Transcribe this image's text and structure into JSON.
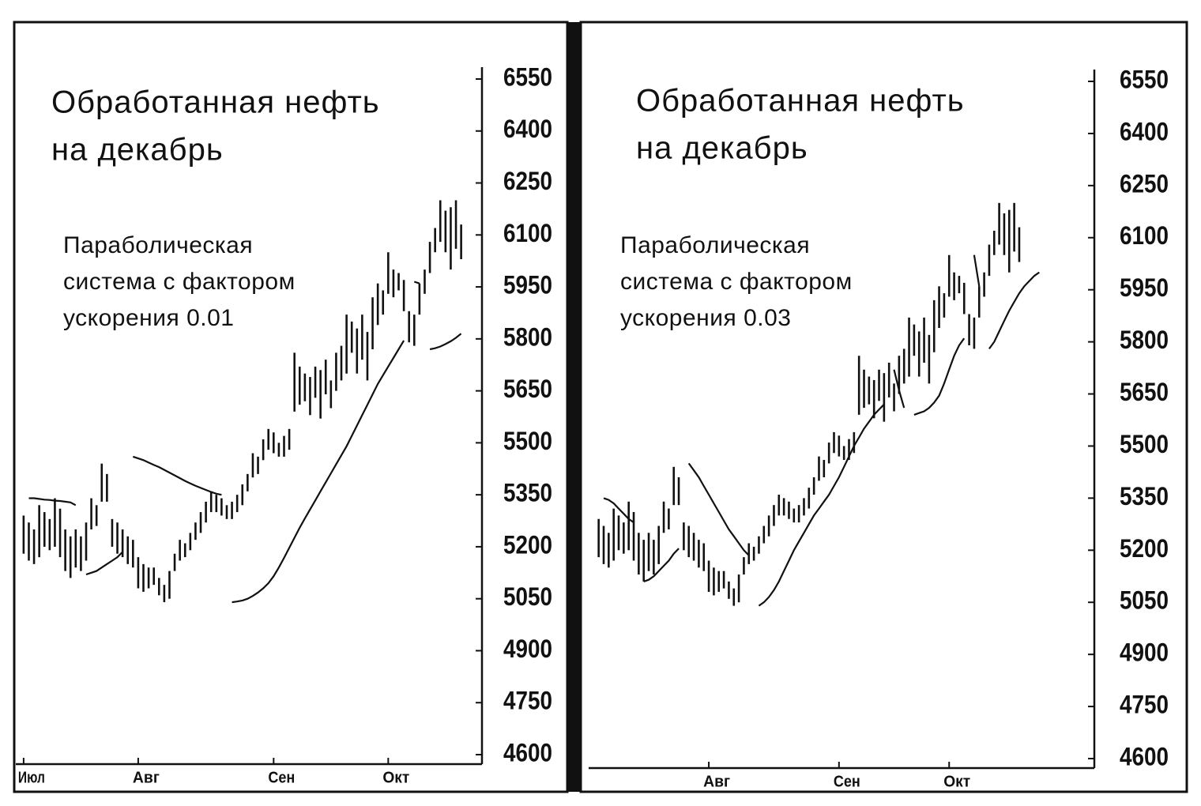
{
  "chart_data": [
    {
      "type": "ohlc",
      "title": [
        "Обработанная нефть",
        "на декабрь"
      ],
      "annotation": [
        "Параболическая",
        "система с фактором",
        "ускорения 0.01"
      ],
      "x": [
        0,
        1,
        2,
        3,
        4,
        5,
        6,
        7,
        8,
        9,
        10,
        11,
        12,
        13,
        14,
        15,
        16,
        17,
        18,
        19,
        20,
        21,
        22,
        23,
        24,
        25,
        26,
        27,
        28,
        29,
        30,
        31,
        32,
        33,
        34,
        35,
        36,
        37,
        38,
        39,
        40,
        41,
        42,
        43,
        44,
        45,
        46,
        47,
        48,
        49,
        50,
        51,
        52,
        53,
        54,
        55,
        56,
        57,
        58,
        59,
        60,
        61,
        62,
        63,
        64,
        65,
        66,
        67,
        68,
        69,
        70,
        71,
        72,
        73,
        74,
        75,
        76,
        77,
        78,
        79,
        80,
        81,
        82,
        83,
        84
      ],
      "high": [
        5290,
        5270,
        5250,
        5320,
        5300,
        5280,
        5340,
        5310,
        5250,
        5230,
        5250,
        5230,
        5270,
        5340,
        5320,
        5440,
        5410,
        5280,
        5270,
        5250,
        5230,
        5220,
        5170,
        5150,
        5140,
        5140,
        5110,
        5090,
        5130,
        5180,
        5220,
        5210,
        5240,
        5270,
        5300,
        5330,
        5360,
        5350,
        5340,
        5320,
        5330,
        5350,
        5380,
        5410,
        5470,
        5460,
        5510,
        5540,
        5530,
        5500,
        5520,
        5540,
        5760,
        5720,
        5700,
        5690,
        5720,
        5710,
        5740,
        5680,
        5760,
        5780,
        5870,
        5850,
        5830,
        5870,
        5820,
        5920,
        5960,
        5940,
        6050,
        6000,
        5990,
        5970,
        5880,
        5870,
        5960,
        6000,
        6080,
        6120,
        6200,
        6170,
        6180,
        6200,
        6130
      ],
      "low": [
        5180,
        5160,
        5150,
        5170,
        5200,
        5190,
        5200,
        5170,
        5130,
        5110,
        5140,
        5130,
        5160,
        5250,
        5260,
        5330,
        5330,
        5200,
        5180,
        5170,
        5150,
        5140,
        5080,
        5070,
        5080,
        5090,
        5060,
        5040,
        5050,
        5130,
        5160,
        5170,
        5190,
        5220,
        5240,
        5270,
        5300,
        5300,
        5290,
        5280,
        5280,
        5300,
        5320,
        5360,
        5400,
        5410,
        5450,
        5480,
        5470,
        5460,
        5460,
        5480,
        5590,
        5610,
        5620,
        5580,
        5630,
        5570,
        5640,
        5600,
        5650,
        5680,
        5700,
        5760,
        5700,
        5740,
        5680,
        5770,
        5840,
        5870,
        5930,
        5920,
        5940,
        5880,
        5790,
        5780,
        5870,
        5930,
        5990,
        6050,
        6080,
        6050,
        6000,
        6060,
        6030
      ],
      "sar": {
        "color": "#111",
        "values": [
          null,
          5340,
          5340,
          5338,
          5336,
          5335,
          5333,
          5332,
          5330,
          5328,
          5320,
          null,
          5120,
          5125,
          5130,
          5140,
          5150,
          5160,
          5170,
          5185,
          null,
          5460,
          5455,
          5450,
          5443,
          5436,
          5430,
          5422,
          5414,
          5406,
          5398,
          5390,
          5383,
          5376,
          5370,
          5364,
          5358,
          5353,
          5350,
          null,
          5040,
          5042,
          5045,
          5050,
          5058,
          5068,
          5080,
          5095,
          5115,
          5140,
          5168,
          5197,
          5226,
          5255,
          5282,
          5308,
          5334,
          5360,
          5386,
          5412,
          5438,
          5464,
          5490,
          5520,
          5550,
          5580,
          5610,
          5640,
          5670,
          5695,
          5720,
          5745,
          5770,
          5795,
          null,
          5965,
          5960,
          null,
          5770,
          5773,
          5778,
          5785,
          5793,
          5803,
          5815
        ]
      },
      "color": "#111",
      "xlim": [
        -1.5,
        88
      ],
      "xticks": [
        {
          "value": 0,
          "label": "Июл"
        },
        {
          "value": 22,
          "label": "Авг"
        },
        {
          "value": 48,
          "label": "Сен"
        },
        {
          "value": 70,
          "label": "Окт"
        }
      ],
      "ylim": [
        4600,
        6550
      ],
      "yticks": [
        4600,
        4750,
        4900,
        5050,
        5200,
        5350,
        5500,
        5650,
        5800,
        5950,
        6100,
        6250,
        6400,
        6550
      ]
    },
    {
      "type": "ohlc",
      "title": [
        "Обработанная нефть",
        "на декабрь"
      ],
      "annotation": [
        "Параболическая",
        "система с фактором",
        "ускорения 0.03"
      ],
      "x": [
        0,
        1,
        2,
        3,
        4,
        5,
        6,
        7,
        8,
        9,
        10,
        11,
        12,
        13,
        14,
        15,
        16,
        17,
        18,
        19,
        20,
        21,
        22,
        23,
        24,
        25,
        26,
        27,
        28,
        29,
        30,
        31,
        32,
        33,
        34,
        35,
        36,
        37,
        38,
        39,
        40,
        41,
        42,
        43,
        44,
        45,
        46,
        47,
        48,
        49,
        50,
        51,
        52,
        53,
        54,
        55,
        56,
        57,
        58,
        59,
        60,
        61,
        62,
        63,
        64,
        65,
        66,
        67,
        68,
        69,
        70,
        71,
        72,
        73,
        74,
        75,
        76,
        77,
        78,
        79,
        80,
        81,
        82,
        83,
        84,
        85,
        86,
        87,
        88
      ],
      "high": [
        5290,
        5270,
        5250,
        5320,
        5300,
        5280,
        5340,
        5310,
        5250,
        5230,
        5250,
        5230,
        5270,
        5340,
        5320,
        5440,
        5410,
        5280,
        5270,
        5250,
        5230,
        5220,
        5170,
        5150,
        5140,
        5140,
        5110,
        5090,
        5130,
        5180,
        5220,
        5210,
        5240,
        5270,
        5300,
        5330,
        5360,
        5350,
        5340,
        5320,
        5330,
        5350,
        5380,
        5410,
        5470,
        5460,
        5510,
        5540,
        5530,
        5500,
        5520,
        5540,
        5760,
        5720,
        5700,
        5690,
        5720,
        5710,
        5740,
        5680,
        5760,
        5780,
        5870,
        5850,
        5830,
        5870,
        5820,
        5920,
        5960,
        5940,
        6050,
        6000,
        5990,
        5970,
        5880,
        5870,
        5960,
        6000,
        6080,
        6120,
        6200,
        6170,
        6180,
        6200,
        6130,
        null,
        null,
        null,
        null
      ],
      "low": [
        5180,
        5160,
        5150,
        5170,
        5200,
        5190,
        5200,
        5170,
        5130,
        5110,
        5140,
        5130,
        5160,
        5250,
        5260,
        5330,
        5330,
        5200,
        5180,
        5170,
        5150,
        5140,
        5080,
        5070,
        5080,
        5090,
        5060,
        5040,
        5050,
        5130,
        5160,
        5170,
        5190,
        5220,
        5240,
        5270,
        5300,
        5300,
        5290,
        5280,
        5280,
        5300,
        5320,
        5360,
        5400,
        5410,
        5450,
        5480,
        5470,
        5460,
        5460,
        5480,
        5590,
        5610,
        5620,
        5580,
        5630,
        5570,
        5640,
        5600,
        5650,
        5680,
        5700,
        5760,
        5700,
        5740,
        5680,
        5770,
        5840,
        5870,
        5930,
        5920,
        5940,
        5880,
        5790,
        5780,
        5870,
        5930,
        5990,
        6050,
        6080,
        6050,
        6000,
        6060,
        6030,
        null,
        null,
        null,
        null
      ],
      "sar": {
        "color": "#111",
        "values": [
          null,
          5350,
          5345,
          5335,
          5320,
          5305,
          5290,
          5280,
          null,
          5110,
          5115,
          5125,
          5140,
          5155,
          5170,
          5190,
          5205,
          null,
          5450,
          5430,
          5410,
          5385,
          5360,
          5335,
          5310,
          5285,
          5260,
          5240,
          5220,
          5200,
          5185,
          null,
          5040,
          5050,
          5065,
          5085,
          5110,
          5140,
          5170,
          5200,
          5225,
          5250,
          5275,
          5300,
          5320,
          5340,
          5360,
          5385,
          5410,
          5440,
          5470,
          5500,
          5525,
          5550,
          5570,
          5590,
          5605,
          5620,
          null,
          5720,
          5660,
          5610,
          null,
          5590,
          5595,
          5600,
          5610,
          5625,
          5645,
          5680,
          5720,
          5760,
          5790,
          5810,
          null,
          6050,
          5960,
          null,
          5780,
          5800,
          5830,
          5860,
          5890,
          5915,
          5940,
          5960,
          5975,
          5990,
          6000
        ]
      },
      "color": "#111",
      "xlim": [
        -2,
        99
      ],
      "xticks": [
        {
          "value": 22,
          "label": "Авг"
        },
        {
          "value": 48,
          "label": "Сен"
        },
        {
          "value": 70,
          "label": "Окт"
        }
      ],
      "ylim": [
        4600,
        6550
      ],
      "yticks": [
        4600,
        4750,
        4900,
        5050,
        5200,
        5350,
        5500,
        5650,
        5800,
        5950,
        6100,
        6250,
        6400,
        6550
      ]
    }
  ]
}
